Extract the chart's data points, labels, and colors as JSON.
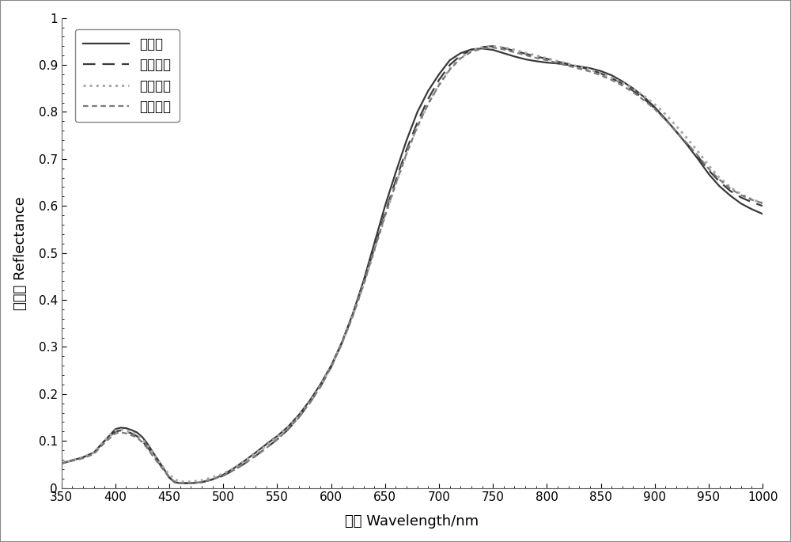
{
  "xlabel": "波长 Wavelength/nm",
  "ylabel": "反射率 Reflectance",
  "xlim": [
    350,
    1000
  ],
  "ylim": [
    0,
    1.0
  ],
  "xticks": [
    350,
    400,
    450,
    500,
    550,
    600,
    650,
    700,
    750,
    800,
    850,
    900,
    950,
    1000
  ],
  "yticks": [
    0,
    0.1,
    0.2,
    0.3,
    0.4,
    0.5,
    0.6,
    0.7,
    0.8,
    0.9,
    1
  ],
  "fig_bg_color": "#ffffff",
  "plot_bg_color": "#ffffff",
  "series": [
    {
      "label": "正常期",
      "color": "#3a3a3a",
      "linestyle": "solid",
      "linewidth": 1.6,
      "x": [
        350,
        370,
        380,
        390,
        400,
        405,
        410,
        415,
        420,
        425,
        430,
        435,
        440,
        445,
        450,
        455,
        460,
        470,
        480,
        490,
        500,
        510,
        520,
        530,
        540,
        550,
        560,
        570,
        580,
        590,
        600,
        610,
        620,
        630,
        640,
        650,
        660,
        670,
        680,
        690,
        700,
        710,
        720,
        730,
        740,
        750,
        760,
        770,
        780,
        790,
        800,
        810,
        820,
        830,
        840,
        850,
        860,
        870,
        880,
        890,
        900,
        910,
        920,
        930,
        940,
        950,
        960,
        970,
        980,
        990,
        1000
      ],
      "y": [
        0.052,
        0.065,
        0.075,
        0.1,
        0.125,
        0.128,
        0.127,
        0.123,
        0.118,
        0.108,
        0.093,
        0.075,
        0.058,
        0.04,
        0.022,
        0.012,
        0.01,
        0.01,
        0.012,
        0.018,
        0.028,
        0.042,
        0.058,
        0.075,
        0.093,
        0.11,
        0.13,
        0.155,
        0.185,
        0.22,
        0.26,
        0.31,
        0.37,
        0.44,
        0.52,
        0.6,
        0.672,
        0.74,
        0.8,
        0.845,
        0.88,
        0.91,
        0.925,
        0.933,
        0.935,
        0.932,
        0.925,
        0.918,
        0.912,
        0.908,
        0.905,
        0.903,
        0.9,
        0.897,
        0.893,
        0.887,
        0.878,
        0.865,
        0.85,
        0.832,
        0.81,
        0.785,
        0.758,
        0.73,
        0.7,
        0.668,
        0.642,
        0.622,
        0.605,
        0.593,
        0.583
      ]
    },
    {
      "label": "霉变初期",
      "color": "#3a3a3a",
      "linestyle": "dashed",
      "linewidth": 1.6,
      "dashes": [
        7,
        4
      ],
      "x": [
        350,
        370,
        380,
        390,
        400,
        405,
        410,
        415,
        420,
        425,
        430,
        435,
        440,
        445,
        450,
        455,
        460,
        470,
        480,
        490,
        500,
        510,
        520,
        530,
        540,
        550,
        560,
        570,
        580,
        590,
        600,
        610,
        620,
        630,
        640,
        650,
        660,
        670,
        680,
        690,
        700,
        710,
        720,
        730,
        740,
        750,
        760,
        770,
        780,
        790,
        800,
        810,
        820,
        830,
        840,
        850,
        860,
        870,
        880,
        890,
        900,
        910,
        920,
        930,
        940,
        950,
        960,
        970,
        980,
        990,
        1000
      ],
      "y": [
        0.052,
        0.065,
        0.075,
        0.1,
        0.12,
        0.122,
        0.12,
        0.116,
        0.11,
        0.1,
        0.086,
        0.07,
        0.054,
        0.038,
        0.022,
        0.012,
        0.01,
        0.01,
        0.012,
        0.018,
        0.026,
        0.038,
        0.052,
        0.068,
        0.085,
        0.103,
        0.124,
        0.15,
        0.18,
        0.215,
        0.257,
        0.308,
        0.367,
        0.435,
        0.51,
        0.585,
        0.655,
        0.72,
        0.778,
        0.828,
        0.868,
        0.9,
        0.92,
        0.932,
        0.938,
        0.94,
        0.936,
        0.93,
        0.924,
        0.918,
        0.913,
        0.907,
        0.902,
        0.896,
        0.89,
        0.882,
        0.872,
        0.86,
        0.845,
        0.828,
        0.808,
        0.784,
        0.758,
        0.732,
        0.705,
        0.676,
        0.652,
        0.632,
        0.618,
        0.608,
        0.6
      ]
    },
    {
      "label": "霉变中期",
      "color": "#aaaaaa",
      "linestyle": "dotted",
      "linewidth": 2.2,
      "x": [
        350,
        370,
        380,
        390,
        400,
        405,
        410,
        415,
        420,
        425,
        430,
        435,
        440,
        445,
        450,
        455,
        460,
        470,
        480,
        490,
        500,
        510,
        520,
        530,
        540,
        550,
        560,
        570,
        580,
        590,
        600,
        610,
        620,
        630,
        640,
        650,
        660,
        670,
        680,
        690,
        700,
        710,
        720,
        730,
        740,
        750,
        760,
        770,
        780,
        790,
        800,
        810,
        820,
        830,
        840,
        850,
        860,
        870,
        880,
        890,
        900,
        910,
        920,
        930,
        940,
        950,
        960,
        970,
        980,
        990,
        1000
      ],
      "y": [
        0.052,
        0.065,
        0.075,
        0.1,
        0.122,
        0.124,
        0.122,
        0.118,
        0.113,
        0.103,
        0.089,
        0.073,
        0.057,
        0.042,
        0.028,
        0.018,
        0.013,
        0.013,
        0.016,
        0.022,
        0.03,
        0.042,
        0.057,
        0.073,
        0.09,
        0.108,
        0.128,
        0.153,
        0.182,
        0.217,
        0.258,
        0.308,
        0.366,
        0.432,
        0.505,
        0.578,
        0.647,
        0.712,
        0.769,
        0.818,
        0.858,
        0.892,
        0.916,
        0.93,
        0.938,
        0.94,
        0.937,
        0.932,
        0.926,
        0.92,
        0.914,
        0.908,
        0.902,
        0.896,
        0.89,
        0.882,
        0.873,
        0.862,
        0.849,
        0.834,
        0.816,
        0.795,
        0.77,
        0.744,
        0.716,
        0.686,
        0.66,
        0.64,
        0.625,
        0.614,
        0.606
      ]
    },
    {
      "label": "霉变后期",
      "color": "#7a7a7a",
      "linestyle": "dashed",
      "linewidth": 1.6,
      "dashes": [
        3,
        2,
        3,
        2
      ],
      "x": [
        350,
        370,
        380,
        390,
        400,
        405,
        410,
        415,
        420,
        425,
        430,
        435,
        440,
        445,
        450,
        455,
        460,
        470,
        480,
        490,
        500,
        510,
        520,
        530,
        540,
        550,
        560,
        570,
        580,
        590,
        600,
        610,
        620,
        630,
        640,
        650,
        660,
        670,
        680,
        690,
        700,
        710,
        720,
        730,
        740,
        750,
        760,
        770,
        780,
        790,
        800,
        810,
        820,
        830,
        840,
        850,
        860,
        870,
        880,
        890,
        900,
        910,
        920,
        930,
        940,
        950,
        960,
        970,
        980,
        990,
        1000
      ],
      "y": [
        0.052,
        0.063,
        0.072,
        0.096,
        0.116,
        0.118,
        0.116,
        0.112,
        0.107,
        0.097,
        0.083,
        0.067,
        0.052,
        0.037,
        0.022,
        0.013,
        0.01,
        0.01,
        0.012,
        0.018,
        0.026,
        0.038,
        0.052,
        0.068,
        0.085,
        0.103,
        0.124,
        0.15,
        0.18,
        0.215,
        0.257,
        0.307,
        0.365,
        0.432,
        0.506,
        0.58,
        0.648,
        0.712,
        0.769,
        0.817,
        0.857,
        0.89,
        0.914,
        0.928,
        0.935,
        0.937,
        0.933,
        0.927,
        0.921,
        0.915,
        0.91,
        0.904,
        0.898,
        0.892,
        0.886,
        0.878,
        0.868,
        0.856,
        0.842,
        0.825,
        0.806,
        0.783,
        0.758,
        0.733,
        0.707,
        0.679,
        0.656,
        0.637,
        0.623,
        0.613,
        0.606
      ]
    }
  ],
  "legend_fontsize": 12,
  "axis_fontsize": 13,
  "tick_fontsize": 11
}
